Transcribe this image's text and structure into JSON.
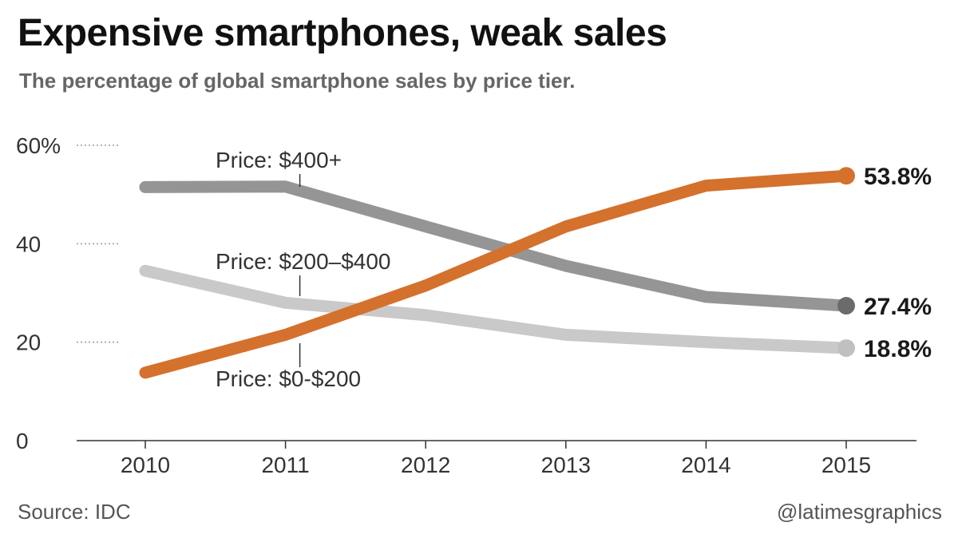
{
  "header": {
    "title": "Expensive smartphones, weak sales",
    "subtitle": "The percentage of global smartphone sales by price tier."
  },
  "footer": {
    "source": "Source: IDC",
    "credit": "@latimesgraphics"
  },
  "chart_data": {
    "type": "line",
    "x": [
      2010,
      2011,
      2012,
      2013,
      2014,
      2015
    ],
    "x_tick_labels": [
      "2010",
      "2011",
      "2012",
      "2013",
      "2014",
      "2015"
    ],
    "y_ticks": [
      0,
      20,
      40,
      60
    ],
    "y_tick_labels": [
      "0",
      "20",
      "40",
      "60%"
    ],
    "ylim": [
      0,
      60
    ],
    "grid": "dotted stubs at y ticks",
    "series": [
      {
        "name": "Price: $400+",
        "color": "#959595",
        "values": [
          51.5,
          51.6,
          43.5,
          35.5,
          29.2,
          27.4
        ],
        "end_label": "27.4%"
      },
      {
        "name": "Price: $200–$400",
        "color": "#c9c9c9",
        "values": [
          34.5,
          28.0,
          25.5,
          21.5,
          20.0,
          18.8
        ],
        "end_label": "18.8%"
      },
      {
        "name": "Price: $0-$200",
        "color": "#d4712d",
        "values": [
          13.8,
          21.5,
          31.5,
          43.5,
          51.8,
          53.8
        ],
        "end_label": "53.8%"
      }
    ]
  },
  "colors": {
    "end_dot_400": "#6b6b6b",
    "end_dot_200_400": "#c0c0c0",
    "end_dot_0_200": "#d4712d"
  }
}
